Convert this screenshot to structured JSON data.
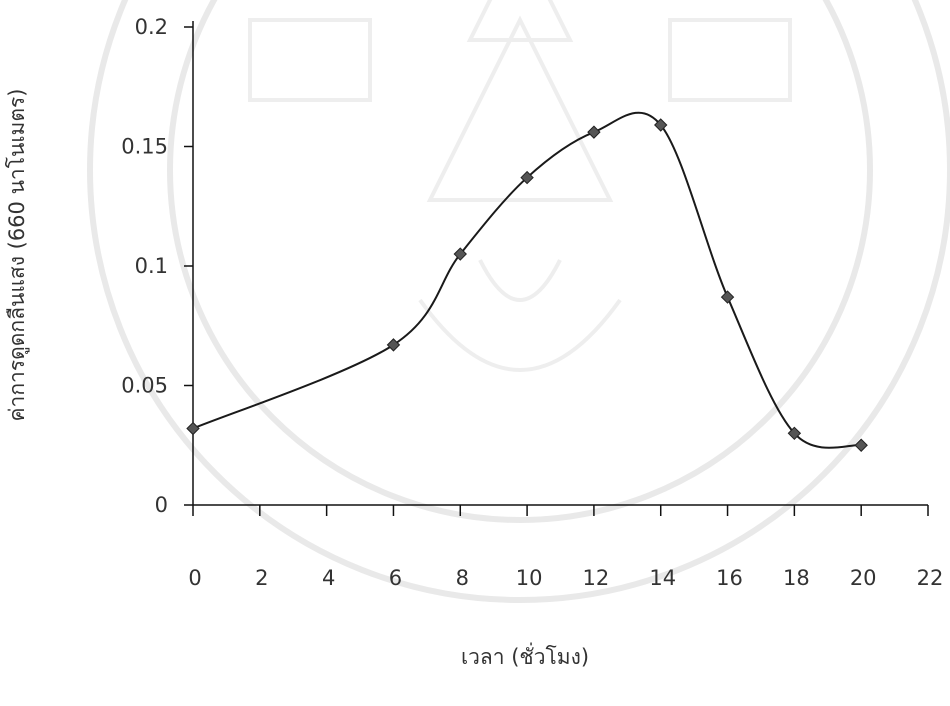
{
  "chart_data": {
    "type": "line",
    "title": "",
    "xlabel": "เวลา (ชั่วโมง)",
    "ylabel": "ค่าการดูดกลืนแสง (660 นาโนเมตร)",
    "xlim": [
      0,
      22
    ],
    "ylim": [
      0,
      0.2
    ],
    "x_ticks": [
      "0",
      "2",
      "4",
      "6",
      "8",
      "10",
      "12",
      "14",
      "16",
      "18",
      "20",
      "22"
    ],
    "y_ticks": [
      "0",
      "0.05",
      "0.1",
      "0.15",
      "0.2"
    ],
    "grid": false,
    "legend": "none",
    "series": [
      {
        "x": [
          0,
          6,
          8,
          10,
          12,
          14,
          16,
          18,
          20
        ],
        "values": [
          0.032,
          0.067,
          0.105,
          0.137,
          0.156,
          0.159,
          0.087,
          0.03,
          0.025
        ]
      }
    ],
    "line_color": "#1a1a1a",
    "marker_color": "#555555"
  }
}
